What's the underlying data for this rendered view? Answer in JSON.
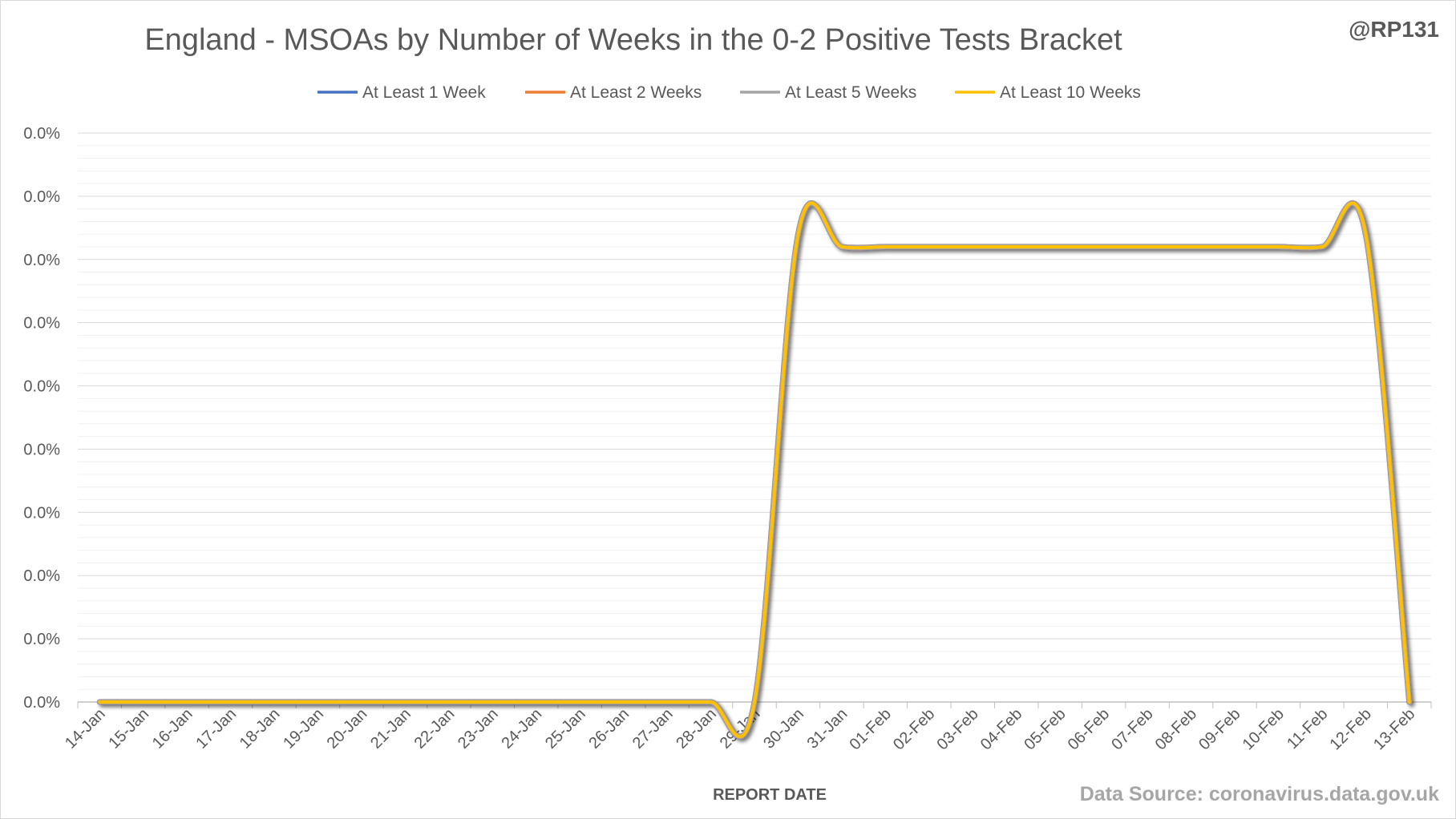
{
  "chart_data": {
    "type": "line",
    "title": "England - MSOAs by Number of Weeks in the 0-2 Positive Tests Bracket",
    "handle": "@RP131",
    "source": "Data Source: coronavirus.data.gov.uk",
    "xlabel": "REPORT DATE",
    "ylabel": "",
    "y_tick_labels": [
      "0.0%",
      "0.0%",
      "0.0%",
      "0.0%",
      "0.0%",
      "0.0%",
      "0.0%",
      "0.0%",
      "0.0%",
      "0.0%"
    ],
    "ylim": [
      0,
      0.0045
    ],
    "grid": true,
    "legend_position": "top",
    "categories": [
      "14-Jan",
      "15-Jan",
      "16-Jan",
      "17-Jan",
      "18-Jan",
      "19-Jan",
      "20-Jan",
      "21-Jan",
      "22-Jan",
      "23-Jan",
      "24-Jan",
      "25-Jan",
      "26-Jan",
      "27-Jan",
      "28-Jan",
      "29-Jan",
      "30-Jan",
      "31-Jan",
      "01-Feb",
      "02-Feb",
      "03-Feb",
      "04-Feb",
      "05-Feb",
      "06-Feb",
      "07-Feb",
      "08-Feb",
      "09-Feb",
      "10-Feb",
      "11-Feb",
      "12-Feb",
      "13-Feb"
    ],
    "series": [
      {
        "name": "At Least 1 Week",
        "color": "#4472C4",
        "values": [
          0,
          0,
          0,
          0,
          0,
          0,
          0,
          0,
          0,
          0,
          0,
          0,
          0,
          0,
          0,
          0,
          0.0037,
          0.0036,
          0.0036,
          0.0036,
          0.0036,
          0.0036,
          0.0036,
          0.0036,
          0.0036,
          0.0036,
          0.0036,
          0.0036,
          0.0036,
          0.0037,
          0
        ]
      },
      {
        "name": "At Least 2 Weeks",
        "color": "#ED7D31",
        "values": [
          0,
          0,
          0,
          0,
          0,
          0,
          0,
          0,
          0,
          0,
          0,
          0,
          0,
          0,
          0,
          0,
          0.0037,
          0.0036,
          0.0036,
          0.0036,
          0.0036,
          0.0036,
          0.0036,
          0.0036,
          0.0036,
          0.0036,
          0.0036,
          0.0036,
          0.0036,
          0.0037,
          0
        ]
      },
      {
        "name": "At Least 5 Weeks",
        "color": "#A5A5A5",
        "values": [
          0,
          0,
          0,
          0,
          0,
          0,
          0,
          0,
          0,
          0,
          0,
          0,
          0,
          0,
          0,
          0,
          0.0037,
          0.0036,
          0.0036,
          0.0036,
          0.0036,
          0.0036,
          0.0036,
          0.0036,
          0.0036,
          0.0036,
          0.0036,
          0.0036,
          0.0036,
          0.0037,
          0
        ]
      },
      {
        "name": "At Least 10 Weeks",
        "color": "#FFC000",
        "values": [
          0,
          0,
          0,
          0,
          0,
          0,
          0,
          0,
          0,
          0,
          0,
          0,
          0,
          0,
          0,
          0,
          0.0037,
          0.0036,
          0.0036,
          0.0036,
          0.0036,
          0.0036,
          0.0036,
          0.0036,
          0.0036,
          0.0036,
          0.0036,
          0.0036,
          0.0036,
          0.0037,
          0
        ]
      }
    ]
  }
}
